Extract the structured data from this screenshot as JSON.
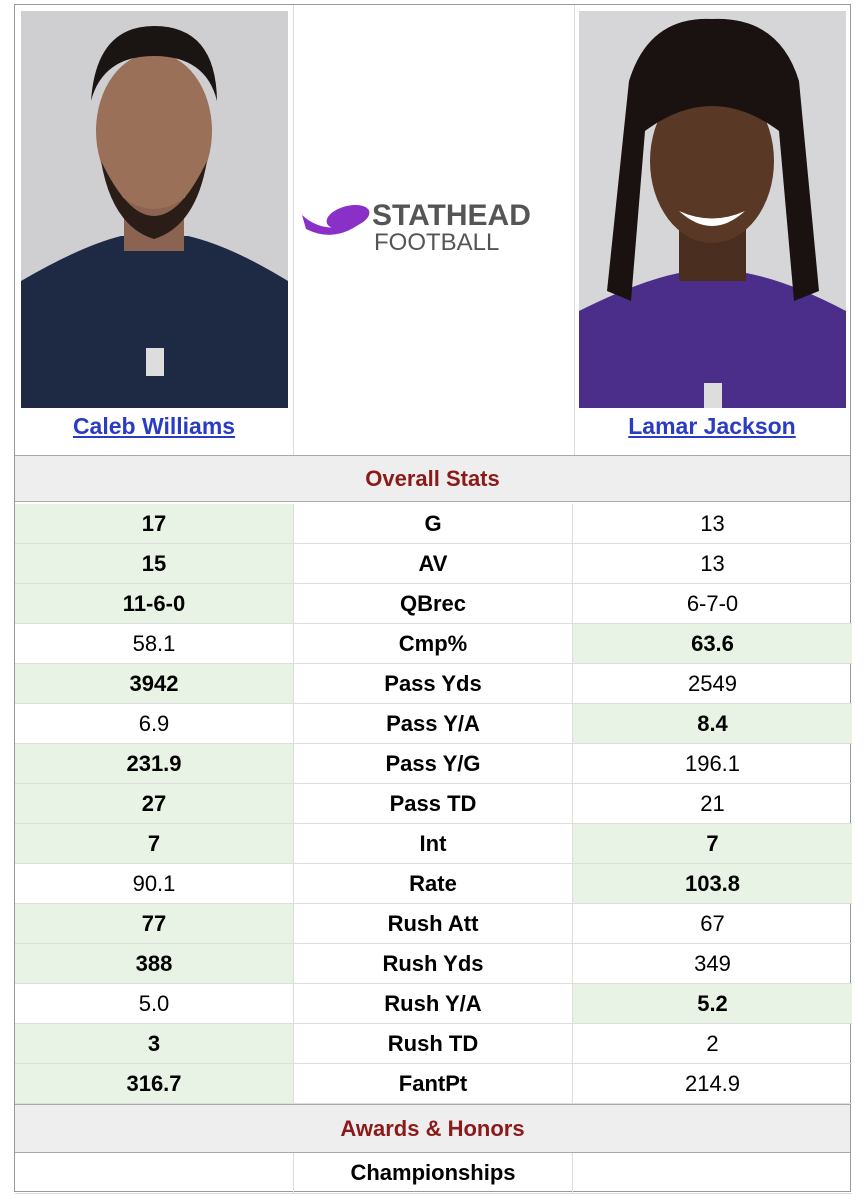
{
  "players": [
    {
      "name": "Caleb Williams"
    },
    {
      "name": "Lamar Jackson"
    }
  ],
  "logo": {
    "line1": "STATHEAD",
    "line2": "FOOTBALL"
  },
  "sections": [
    {
      "title": "Overall Stats",
      "rows": [
        {
          "label": "G",
          "left": "17",
          "right": "13",
          "highlight": [
            "left"
          ]
        },
        {
          "label": "AV",
          "left": "15",
          "right": "13",
          "highlight": [
            "left"
          ]
        },
        {
          "label": "QBrec",
          "left": "11-6-0",
          "right": "6-7-0",
          "highlight": [
            "left"
          ]
        },
        {
          "label": "Cmp%",
          "left": "58.1",
          "right": "63.6",
          "highlight": [
            "right"
          ]
        },
        {
          "label": "Pass Yds",
          "left": "3942",
          "right": "2549",
          "highlight": [
            "left"
          ]
        },
        {
          "label": "Pass Y/A",
          "left": "6.9",
          "right": "8.4",
          "highlight": [
            "right"
          ]
        },
        {
          "label": "Pass Y/G",
          "left": "231.9",
          "right": "196.1",
          "highlight": [
            "left"
          ]
        },
        {
          "label": "Pass TD",
          "left": "27",
          "right": "21",
          "highlight": [
            "left"
          ]
        },
        {
          "label": "Int",
          "left": "7",
          "right": "7",
          "highlight": [
            "left",
            "right"
          ]
        },
        {
          "label": "Rate",
          "left": "90.1",
          "right": "103.8",
          "highlight": [
            "right"
          ]
        },
        {
          "label": "Rush Att",
          "left": "77",
          "right": "67",
          "highlight": [
            "left"
          ]
        },
        {
          "label": "Rush Yds",
          "left": "388",
          "right": "349",
          "highlight": [
            "left"
          ]
        },
        {
          "label": "Rush Y/A",
          "left": "5.0",
          "right": "5.2",
          "highlight": [
            "right"
          ]
        },
        {
          "label": "Rush TD",
          "left": "3",
          "right": "2",
          "highlight": [
            "left"
          ]
        },
        {
          "label": "FantPt",
          "left": "316.7",
          "right": "214.9",
          "highlight": [
            "left"
          ]
        }
      ]
    },
    {
      "title": "Awards & Honors",
      "rows": [
        {
          "label": "Championships"
        }
      ]
    }
  ]
}
